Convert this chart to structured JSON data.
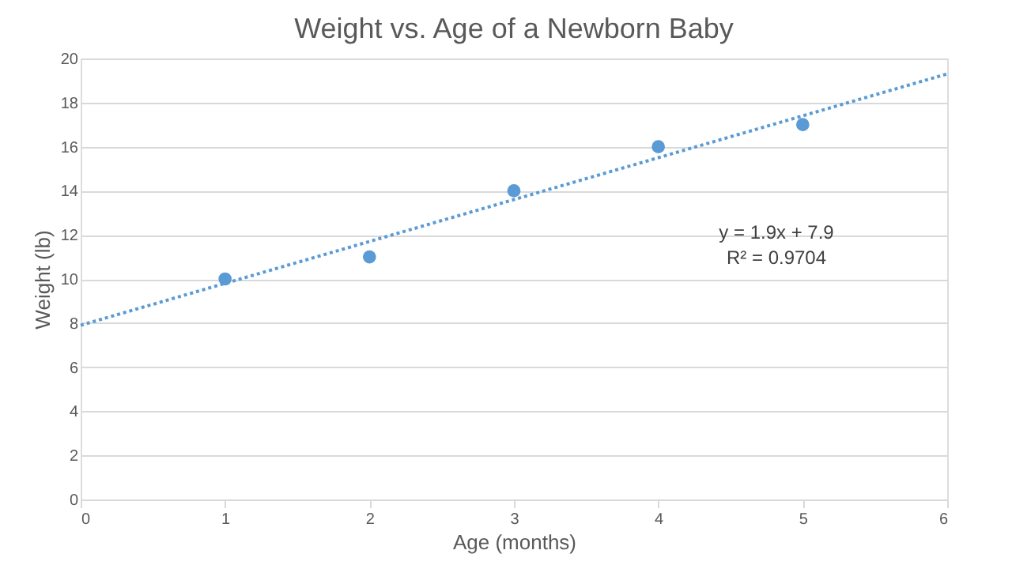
{
  "chart_data": {
    "type": "scatter",
    "title": "Weight vs. Age of a Newborn Baby",
    "xlabel": "Age (months)",
    "ylabel": "Weight (lb)",
    "xlim": [
      0,
      6
    ],
    "xticks": [
      0,
      1,
      2,
      3,
      4,
      5,
      6
    ],
    "ylim": [
      0,
      20
    ],
    "yticks": [
      0,
      2,
      4,
      6,
      8,
      10,
      12,
      14,
      16,
      18,
      20
    ],
    "grid": "y",
    "series": [
      {
        "color": "#5b9bd5",
        "marker": "circle",
        "x": [
          1,
          2,
          3,
          4,
          5
        ],
        "values": [
          10,
          11,
          14,
          16,
          17
        ]
      },
      {
        "type": "line",
        "color": "#5b9bd5",
        "line_style": "dotted",
        "x": [
          0,
          6
        ],
        "values": [
          7.9,
          19.3
        ]
      }
    ],
    "annotations": [
      "y = 1.9x + 7.9",
      "R² = 0.9704"
    ]
  }
}
